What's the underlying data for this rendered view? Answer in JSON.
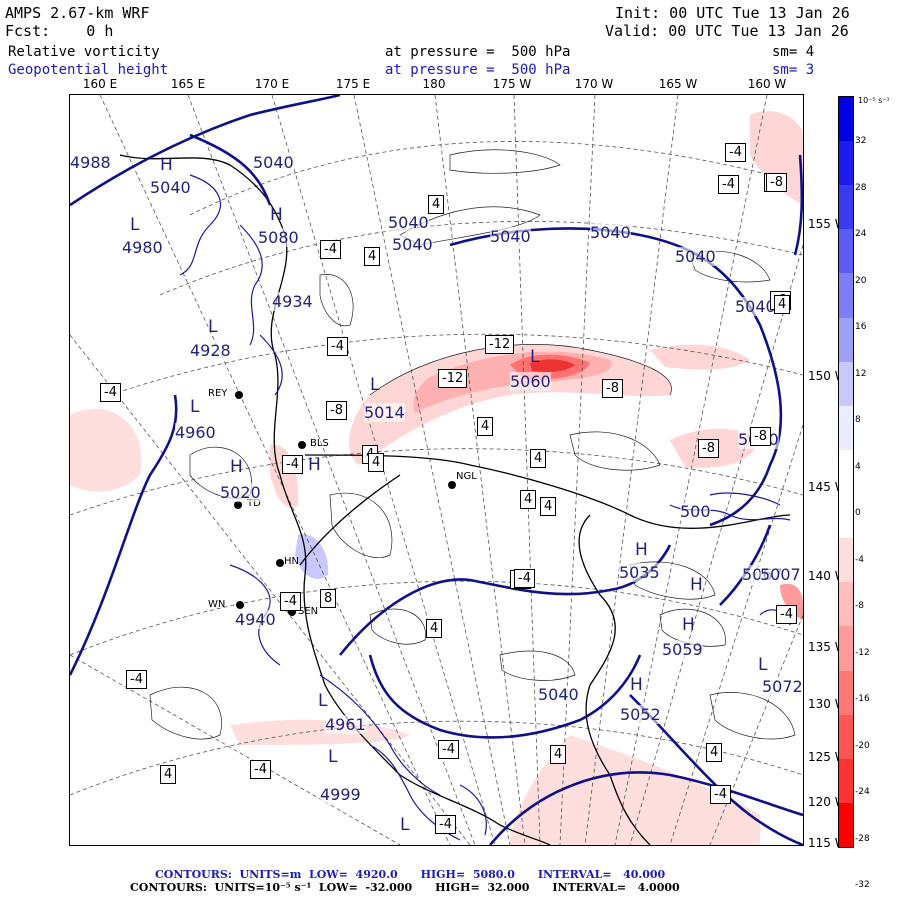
{
  "header": {
    "model": "AMPS 2.67-km WRF",
    "forecast": "Fcst:    0 h",
    "init": "Init: 00 UTC Tue 13 Jan 26",
    "valid": "Valid: 00 UTC Tue 13 Jan 26",
    "field1": "Relative vorticity",
    "field2": "Geopotential height",
    "level1": "at pressure =  500 hPa",
    "level2": "at pressure =  500 hPa",
    "sm1": "sm= 4",
    "sm2": "sm= 3"
  },
  "lon_labels": [
    "160 E",
    "165 E",
    "170 E",
    "175 E",
    "180",
    "175 W",
    "170 W",
    "165 W",
    "160 W"
  ],
  "lat_labels": [
    "155 W",
    "150 W",
    "145 W",
    "140 W",
    "135 W",
    "130 W",
    "125 W",
    "120 W",
    "115 W"
  ],
  "colorbar": {
    "unit": "10⁻⁵ s⁻¹",
    "ticks": [
      "32",
      "28",
      "24",
      "20",
      "16",
      "12",
      "8",
      "4",
      "0",
      "-4",
      "-8",
      "-12",
      "-16",
      "-20",
      "-24",
      "-28",
      "-32"
    ],
    "colors": [
      "#0000e6",
      "#1c1cef",
      "#3a3af2",
      "#5c5cf5",
      "#7d7df7",
      "#a0a0f9",
      "#c8c8fc",
      "#ececff",
      "#ffffff",
      "#ffffff",
      "#ffdede",
      "#ffbcbc",
      "#ff9a9a",
      "#ff7878",
      "#ff5555",
      "#ff3333",
      "#ff0000"
    ]
  },
  "stations": [
    "REY",
    "BLS",
    "NGL",
    "HN",
    "SEN",
    "WN",
    "TD"
  ],
  "height_labels": [
    "5040",
    "5040",
    "4980",
    "5080",
    "4934",
    "4928",
    "5014",
    "4960",
    "5020",
    "4940",
    "4961",
    "4999",
    "5040",
    "5040",
    "5040",
    "5040",
    "5040",
    "5040",
    "5060",
    "5040",
    "5035",
    "5067",
    "5059",
    "5040",
    "5052",
    "5072",
    "4988",
    "5007",
    "500"
  ],
  "hl_labels": [
    "H",
    "L",
    "H",
    "L",
    "L",
    "H",
    "L",
    "L",
    "H",
    "L",
    "H",
    "H",
    "H",
    "L",
    "L",
    "H",
    "L"
  ],
  "vort_boxes": [
    "4",
    "-4",
    "4",
    "-4",
    "-8",
    "4",
    "4",
    "-12",
    "-12",
    "-8",
    "-8",
    "4",
    "-8",
    "-4",
    "4",
    "4",
    "4",
    "-4",
    "4",
    "-4",
    "-8",
    "8",
    "-4",
    "4",
    "-4",
    "4",
    "-4",
    "4",
    "-4",
    "-4",
    "4",
    "-4",
    "-4",
    "4",
    "-4",
    "-4",
    "-4",
    "-8",
    "-4"
  ],
  "footer": {
    "line1": "CONTOURS:  UNITS=m  LOW=  4920.0      HIGH=  5080.0      INTERVAL=   40.000",
    "line2": "CONTOURS:  UNITS=10⁻⁵ s⁻¹  LOW=  -32.000      HIGH=  32.000      INTERVAL=   4.0000"
  }
}
